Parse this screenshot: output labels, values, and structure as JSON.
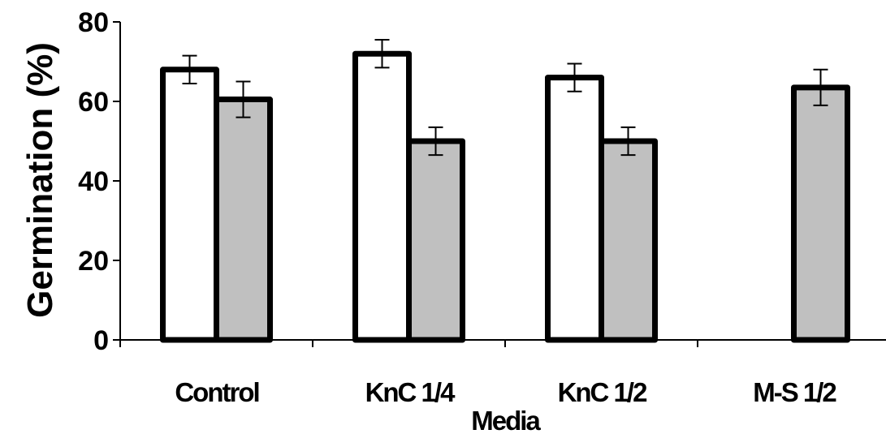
{
  "chart_data": {
    "type": "bar",
    "title": "",
    "xlabel": "Media",
    "ylabel": "Germination (%)",
    "ylim": [
      0,
      80
    ],
    "yticks": [
      "0",
      "20",
      "40",
      "60",
      "80"
    ],
    "grid": false,
    "categories": [
      "Control",
      "KnC 1/4",
      "KnC 1/2",
      "M-S 1/2"
    ],
    "series": [
      {
        "values": [
          68,
          72,
          66,
          0
        ],
        "errors": [
          3.5,
          3.5,
          3.5,
          0
        ],
        "color": "#ffffff"
      },
      {
        "values": [
          60.5,
          50,
          50,
          63.5
        ],
        "errors": [
          4.5,
          3.5,
          3.5,
          4.5
        ],
        "color": "#c0c0c0"
      }
    ]
  }
}
